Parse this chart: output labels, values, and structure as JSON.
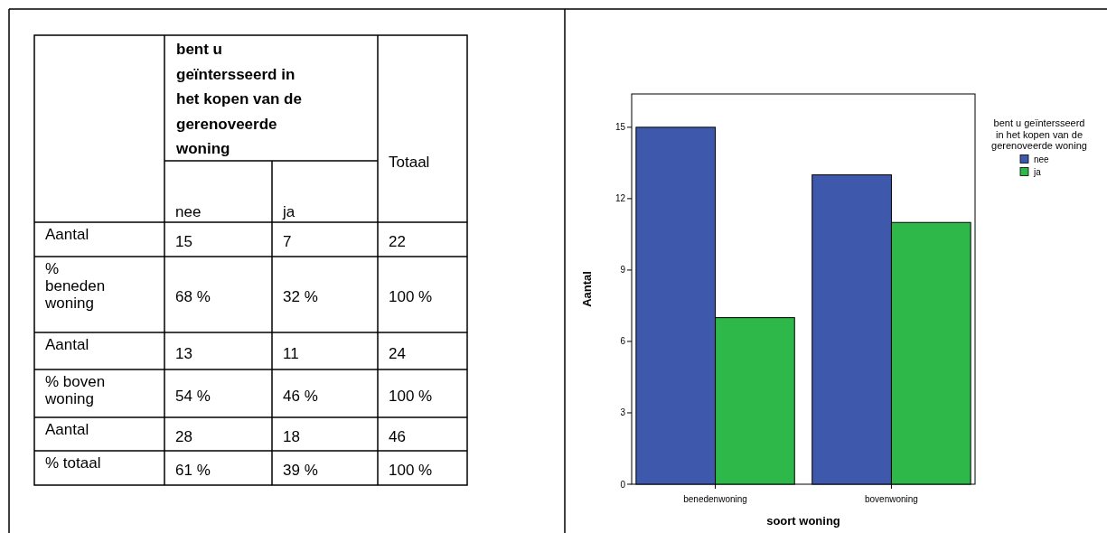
{
  "chart_data": [
    {
      "type": "other",
      "title": "bent u geïntersseerd in het kopen van de gerenoveerde woning",
      "categories": [
        "nee",
        "ja",
        "Totaal"
      ],
      "y_categories": [
        "Aantal",
        "% beneden woning",
        "Aantal",
        "% boven woning",
        "Aantal",
        "% totaal"
      ],
      "cell_labels": [
        [
          "15",
          "7",
          "22"
        ],
        [
          "68 %",
          "32 %",
          "100 %"
        ],
        [
          "13",
          "11",
          "24"
        ],
        [
          "54 %",
          "46 %",
          "100 %"
        ],
        [
          "28",
          "18",
          "46"
        ],
        [
          "61 %",
          "39 %",
          "100 %"
        ]
      ]
    },
    {
      "type": "bar",
      "categories": [
        "benedenwoning",
        "bovenwoning"
      ],
      "xlabel": "soort woning",
      "ylabel": "Aantal",
      "legend_title": "bent u geïntersseerd in het kopen van de gerenoveerde woning",
      "legend": "right",
      "ylim": [
        0,
        16.4
      ],
      "yticks": [
        0,
        3,
        6,
        9,
        12,
        15
      ],
      "series": [
        {
          "name": "nee",
          "color": "#3e58ac",
          "values": [
            15,
            13
          ]
        },
        {
          "name": "ja",
          "color": "#2fb84a",
          "values": [
            7,
            11
          ]
        }
      ]
    }
  ]
}
